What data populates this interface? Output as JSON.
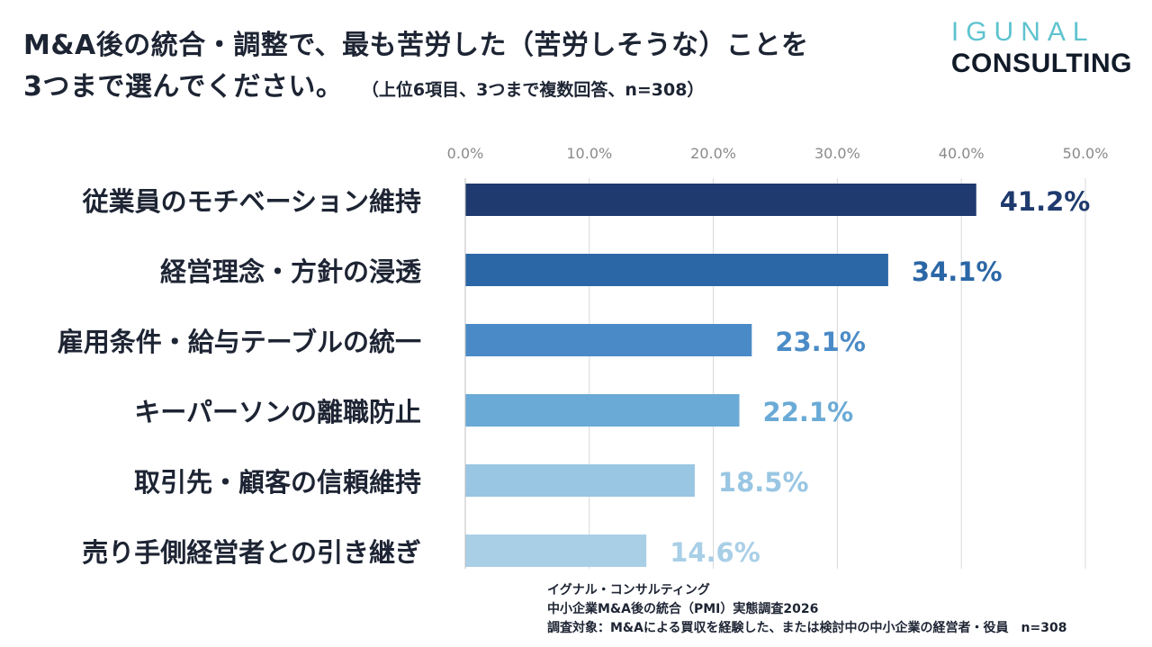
{
  "title": {
    "line1": "M&A後の統合・調整で、最も苦労した（苦労しそうな）ことを",
    "line2": "3つまで選んでください。",
    "note": "（上位6項目、3つまで複数回答、n=308）"
  },
  "logo": {
    "line1": "IGUNAL",
    "line2": "CONSULTING"
  },
  "colors": {
    "bars": [
      "#1e3a6e",
      "#2b67a6",
      "#4a8bc7",
      "#6aaad6",
      "#98c6e3",
      "#a9cfe7"
    ],
    "grid": "#d9d9d9",
    "tick_text": "#8a8a8a"
  },
  "chart_data": {
    "type": "bar",
    "orientation": "horizontal",
    "categories": [
      "従業員のモチベーション維持",
      "経営理念・方針の浸透",
      "雇用条件・給与テーブルの統一",
      "キーパーソンの離職防止",
      "取引先・顧客の信頼維持",
      "売り手側経営者との引き継ぎ"
    ],
    "values": [
      41.2,
      34.1,
      23.1,
      22.1,
      18.5,
      14.6
    ],
    "value_labels": [
      "41.2%",
      "34.1%",
      "23.1%",
      "22.1%",
      "18.5%",
      "14.6%"
    ],
    "x_ticks": [
      "0.0%",
      "10.0%",
      "20.0%",
      "30.0%",
      "40.0%",
      "50.0%"
    ],
    "xlim": [
      0,
      50
    ],
    "grid": true,
    "axis_position": "top"
  },
  "footer": {
    "line1": "イグナル・コンサルティング",
    "line2": "中小企業M&A後の統合（PMI）実態調査2026",
    "line3": "調査対象：M&Aによる買収を経験した、または検討中の中小企業の経営者・役員　n=308"
  }
}
